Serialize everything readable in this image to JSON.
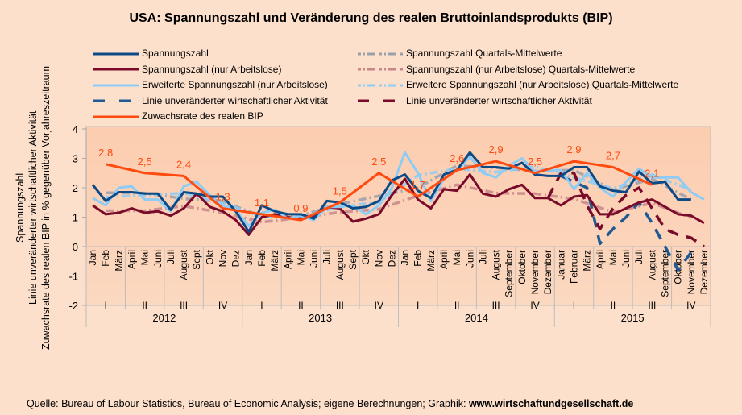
{
  "chart_data": {
    "type": "line",
    "title": "USA: Spannungszahl und Veränderung des realen Bruttoinlandsprodukts (BIP)",
    "ylabel_lines": [
      "Spannungszahl",
      "Linie unveränderter wirtschaftlicher Aktivität",
      "Zuwachsrate des realen BIP in % gegenüber Vorjahreszeitraum"
    ],
    "ylim": [
      -2,
      4
    ],
    "yticks": [
      "4",
      "3",
      "2",
      "1",
      "0",
      "-1",
      "-2"
    ],
    "ytick_values": [
      4,
      3,
      2,
      1,
      0,
      -1,
      -2
    ],
    "years": [
      "2012",
      "2013",
      "2014",
      "2015"
    ],
    "quarters": [
      "I",
      "II",
      "III",
      "IV"
    ],
    "months": [
      [
        "Jan",
        "Feb",
        "März",
        "April",
        "Mai",
        "Juni",
        "Juli",
        "August",
        "Sept",
        "Okt",
        "Nov",
        "Dez"
      ],
      [
        "Jan",
        "Feb",
        "März",
        "April",
        "Mai",
        "Juni",
        "Juli",
        "August",
        "Sept",
        "Okt",
        "Nov",
        "Dez"
      ],
      [
        "Jan",
        "Feb",
        "März",
        "April",
        "Mai",
        "Juni",
        "Juli",
        "August",
        "September",
        "Oktober",
        "November",
        "Dezember"
      ],
      [
        "Januar",
        "Februar",
        "März",
        "April",
        "Mai",
        "Juni",
        "Juli",
        "August",
        "September",
        "Oktober",
        "November",
        "Dezember"
      ]
    ],
    "series": [
      {
        "name": "Spannungszahl",
        "color": "#0b4a86",
        "style": "solid",
        "values": [
          2.1,
          1.55,
          1.85,
          1.85,
          1.8,
          1.8,
          1.25,
          1.85,
          1.8,
          1.7,
          1.7,
          1.2,
          0.5,
          1.4,
          1.2,
          1.1,
          1.1,
          0.95,
          1.55,
          1.5,
          1.3,
          1.35,
          1.55,
          2.25,
          2.45,
          1.9,
          1.65,
          2.45,
          2.6,
          3.2,
          2.7,
          2.7,
          2.65,
          2.85,
          2.45,
          2.4,
          2.4,
          2.7,
          2.7,
          2.05,
          1.9,
          1.85,
          2.55,
          2.15,
          2.2,
          1.6,
          1.6,
          null
        ]
      },
      {
        "name": "Spannungszahl (nur Arbeitslose)",
        "color": "#7a0a2a",
        "style": "solid",
        "values": [
          1.4,
          1.1,
          1.15,
          1.3,
          1.15,
          1.2,
          1.05,
          1.3,
          1.8,
          1.35,
          1.2,
          0.9,
          0.4,
          1.0,
          1.1,
          1.0,
          0.95,
          1.0,
          1.35,
          1.3,
          0.85,
          0.95,
          1.1,
          1.75,
          2.3,
          1.6,
          1.3,
          1.95,
          1.9,
          2.45,
          1.8,
          1.7,
          1.95,
          2.1,
          1.65,
          1.65,
          1.4,
          1.7,
          1.75,
          1.1,
          1.1,
          1.3,
          1.5,
          1.6,
          1.35,
          1.1,
          1.05,
          0.8
        ]
      },
      {
        "name": "Erweiterte Spannungszahl (nur Arbeitslose)",
        "color": "#8ecbf5",
        "style": "solid",
        "values": [
          1.65,
          1.4,
          2.0,
          2.05,
          1.6,
          1.6,
          1.2,
          2.05,
          2.2,
          1.75,
          1.4,
          1.25,
          0.7,
          1.15,
          1.25,
          0.95,
          1.05,
          0.9,
          1.35,
          1.35,
          1.4,
          1.1,
          1.4,
          2.0,
          3.2,
          2.5,
          1.55,
          2.3,
          2.6,
          3.05,
          2.5,
          2.35,
          2.75,
          3.0,
          2.55,
          2.6,
          2.6,
          1.95,
          2.5,
          2.0,
          1.7,
          2.2,
          2.65,
          2.35,
          2.35,
          2.35,
          1.85,
          1.6
        ]
      },
      {
        "name": "Spannungszahl Quartals-Mittelwerte",
        "color": "#9aa0aa",
        "style": "dashdot",
        "quarterly": true,
        "values": [
          1.83,
          1.82,
          1.63,
          1.53,
          1.03,
          1.05,
          1.45,
          1.72,
          2.0,
          2.75,
          2.68,
          2.57,
          2.6,
          1.93,
          2.3,
          1.6
        ]
      },
      {
        "name": "Spannungszahl (nur Arbeitslose) Quartals-Mittelwerte",
        "color": "#c8868a",
        "style": "dashdot",
        "quarterly": true,
        "values": [
          1.22,
          1.22,
          1.38,
          1.15,
          0.83,
          0.98,
          1.17,
          1.27,
          1.73,
          2.1,
          1.82,
          1.8,
          1.62,
          1.17,
          1.48,
          0.98
        ]
      },
      {
        "name": "Erweitere Spannungszahl (nur Arbeitslose) Quartals-Mittelwerte",
        "color": "#8ecbf5",
        "style": "dashdot",
        "quarterly": true,
        "values": [
          1.68,
          1.75,
          1.82,
          1.47,
          1.03,
          0.97,
          1.37,
          1.5,
          2.42,
          2.65,
          2.53,
          2.72,
          2.35,
          1.97,
          2.45,
          1.93
        ]
      },
      {
        "name": "Linie unveränderter wirtschaftlicher Aktivität",
        "color": "#1f5a95",
        "style": "dashed",
        "values": [
          null,
          null,
          null,
          null,
          null,
          null,
          null,
          null,
          null,
          null,
          null,
          null,
          null,
          null,
          null,
          null,
          null,
          null,
          null,
          null,
          null,
          null,
          null,
          null,
          null,
          null,
          null,
          null,
          null,
          null,
          null,
          null,
          null,
          null,
          null,
          null,
          2.4,
          2.2,
          2.0,
          0.1,
          0.6,
          1.0,
          1.5,
          0.8,
          0.0,
          -0.8,
          -0.2,
          null
        ]
      },
      {
        "name": "Linie unveränderter wirtschaftlicher Aktivität",
        "color": "#7a0a2a",
        "style": "dashed",
        "values": [
          null,
          null,
          null,
          null,
          null,
          null,
          null,
          null,
          null,
          null,
          null,
          null,
          null,
          null,
          null,
          null,
          null,
          null,
          null,
          null,
          null,
          null,
          null,
          null,
          null,
          null,
          null,
          null,
          null,
          null,
          null,
          null,
          null,
          null,
          null,
          1.65,
          2.5,
          2.5,
          1.4,
          0.6,
          1.3,
          1.75,
          2.0,
          1.3,
          0.6,
          0.4,
          0.3,
          0.0
        ]
      },
      {
        "name": "Zuwachsrate des realen BIP",
        "color": "#ff4a10",
        "style": "solid",
        "bip": true,
        "month_index": [
          1,
          4,
          7,
          10,
          13,
          16,
          19,
          22,
          25,
          28,
          31,
          34,
          37,
          40,
          43
        ],
        "values": [
          2.8,
          2.5,
          2.4,
          1.3,
          1.1,
          0.9,
          1.5,
          2.5,
          1.7,
          2.6,
          2.9,
          2.5,
          2.9,
          2.7,
          2.1
        ],
        "labels": [
          "2,8",
          "2,5",
          "2,4",
          "1,3",
          "1,1",
          "0,9",
          "1,5",
          "2,5",
          "1,7",
          "2,6",
          "2,9",
          "2,5",
          "2,9",
          "2,7",
          "2,1"
        ]
      }
    ],
    "legend": {
      "left": [
        {
          "label": "Spannungszahl",
          "color": "#0b4a86",
          "style": "solid"
        },
        {
          "label": "Spannungszahl (nur Arbeitslose)",
          "color": "#7a0a2a",
          "style": "solid"
        },
        {
          "label": "Erweiterte Spannungszahl (nur Arbeitslose)",
          "color": "#8ecbf5",
          "style": "solid"
        },
        {
          "label": "Linie unveränderter wirtschaftlicher Aktivität",
          "color": "#1f5a95",
          "style": "dashed"
        },
        {
          "label": "Zuwachsrate des realen BIP",
          "color": "#ff4a10",
          "style": "solid"
        }
      ],
      "right": [
        {
          "label": "Spannungszahl Quartals-Mittelwerte",
          "color": "#9aa0aa",
          "style": "dashdot"
        },
        {
          "label": "Spannungszahl (nur Arbeitslose) Quartals-Mittelwerte",
          "color": "#c8868a",
          "style": "dashdot"
        },
        {
          "label": "Erweitere Spannungszahl (nur Arbeitslose) Quartals-Mittelwerte",
          "color": "#8ecbf5",
          "style": "dashdot"
        },
        {
          "label": "Linie unveränderter wirtschaftlicher Aktivität",
          "color": "#7a0a2a",
          "style": "dashed"
        }
      ],
      "placement": "top"
    },
    "grid": false
  },
  "source": {
    "prefix": "Quelle: Bureau of Labour Statistics, Bureau of Economic Analysis; eigene Berechnungen; Graphik: ",
    "site": "www.wirtschaftundgesellschaft.de"
  }
}
